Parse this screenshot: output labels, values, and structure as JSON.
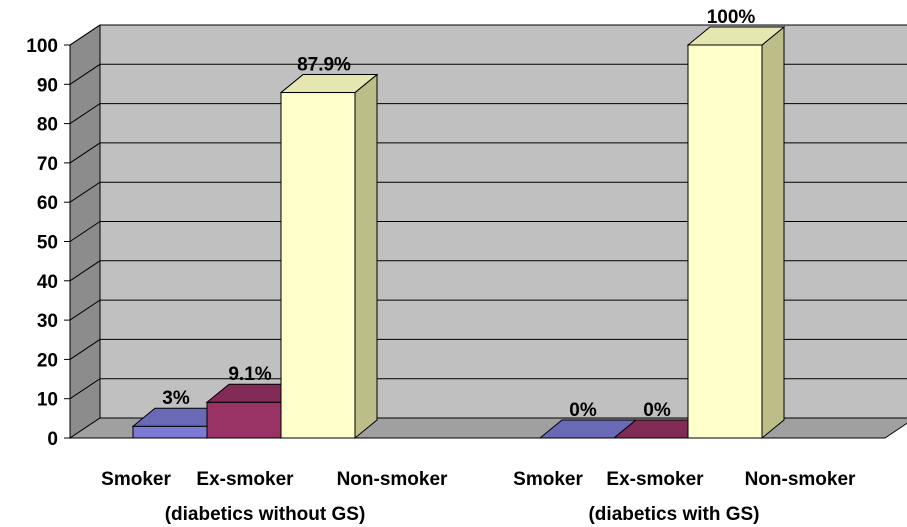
{
  "chart_data": {
    "type": "bar",
    "groups": [
      {
        "name": "(diabetics without GS)",
        "categories": [
          "Smoker",
          "Ex-smoker",
          "Non-smoker"
        ],
        "values": [
          3,
          9.1,
          87.9
        ],
        "labels": [
          "3%",
          "9.1%",
          "87.9%"
        ]
      },
      {
        "name": "(diabetics with GS)",
        "categories": [
          "Smoker",
          "Ex-smoker",
          "Non-smoker"
        ],
        "values": [
          0,
          0,
          100
        ],
        "labels": [
          "0%",
          "0%",
          "100%"
        ]
      }
    ],
    "yticks": [
      "0",
      "10",
      "20",
      "30",
      "40",
      "50",
      "60",
      "70",
      "80",
      "90",
      "100"
    ],
    "ylim": [
      0,
      100
    ],
    "grid": true,
    "legend": "none",
    "colors": {
      "smoker": "#7b7bd6",
      "ex_smoker": "#993366",
      "non_smoker": "#ffffcc",
      "wall": "#c0c0c0",
      "floor": "#a0a0a0"
    }
  }
}
